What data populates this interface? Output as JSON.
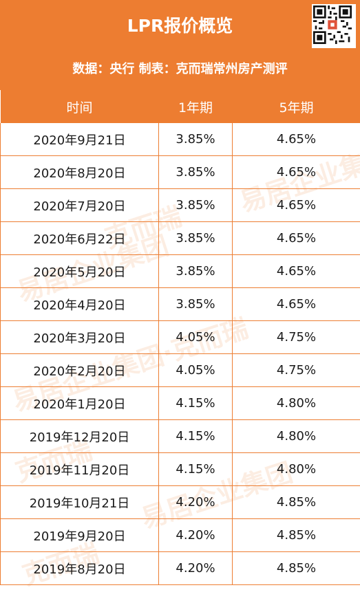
{
  "header": {
    "title": "LPR报价概览",
    "subtitle": "数据：央行 制表：克而瑞常州房产测评"
  },
  "table": {
    "columns": [
      "时间",
      "1年期",
      "5年期"
    ],
    "rows": [
      {
        "date": "2020年9月21日",
        "y1": "3.85%",
        "y5": "4.65%"
      },
      {
        "date": "2020年8月20日",
        "y1": "3.85%",
        "y5": "4.65%"
      },
      {
        "date": "2020年7月20日",
        "y1": "3.85%",
        "y5": "4.65%"
      },
      {
        "date": "2020年6月22日",
        "y1": "3.85%",
        "y5": "4.65%"
      },
      {
        "date": "2020年5月20日",
        "y1": "3.85%",
        "y5": "4.65%"
      },
      {
        "date": "2020年4月20日",
        "y1": "3.85%",
        "y5": "4.65%"
      },
      {
        "date": "2020年3月20日",
        "y1": "4.05%",
        "y5": "4.75%"
      },
      {
        "date": "2020年2月20日",
        "y1": "4.05%",
        "y5": "4.75%"
      },
      {
        "date": "2020年1月20日",
        "y1": "4.15%",
        "y5": "4.80%"
      },
      {
        "date": "2019年12月20日",
        "y1": "4.15%",
        "y5": "4.80%"
      },
      {
        "date": "2019年11月20日",
        "y1": "4.15%",
        "y5": "4.80%"
      },
      {
        "date": "2019年10月21日",
        "y1": "4.20%",
        "y5": "4.85%"
      },
      {
        "date": "2019年9月20日",
        "y1": "4.20%",
        "y5": "4.85%"
      },
      {
        "date": "2019年8月20日",
        "y1": "4.20%",
        "y5": "4.85%"
      }
    ]
  },
  "watermark": {
    "text_a": "易居企业集团·克而瑞",
    "text_b": "克而瑞",
    "text_c": "易居企业集团"
  },
  "colors": {
    "accent": "#ed7d31",
    "header_text": "#ffffff",
    "body_text": "#1a1a1a"
  }
}
